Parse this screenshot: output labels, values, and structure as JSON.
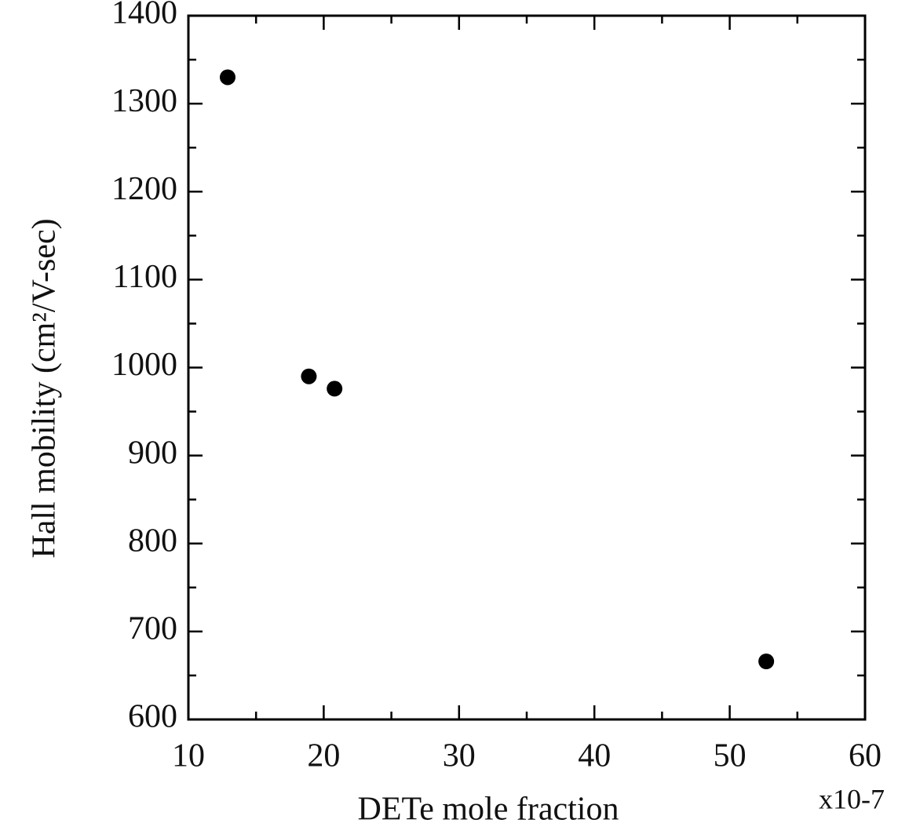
{
  "chart_data": {
    "type": "scatter",
    "xlabel": "DETe mole fraction",
    "ylabel": "Hall mobility (cm²/V-sec)",
    "x_multiplier": "x10-7",
    "series": [
      {
        "color": "#000000",
        "x": [
          12.9,
          18.9,
          20.8,
          52.7
        ],
        "values": [
          1330,
          990,
          976,
          666
        ]
      }
    ],
    "xlim": [
      10,
      60
    ],
    "xticks": [
      10,
      20,
      30,
      40,
      50,
      60
    ],
    "xminorticks": [
      15,
      25,
      35,
      45,
      55
    ],
    "ylim": [
      600,
      1400
    ],
    "yticks": [
      600,
      700,
      800,
      900,
      1000,
      1100,
      1200,
      1300,
      1400
    ],
    "yminorticks": [
      650,
      750,
      850,
      950,
      1050,
      1150,
      1250,
      1350
    ]
  }
}
